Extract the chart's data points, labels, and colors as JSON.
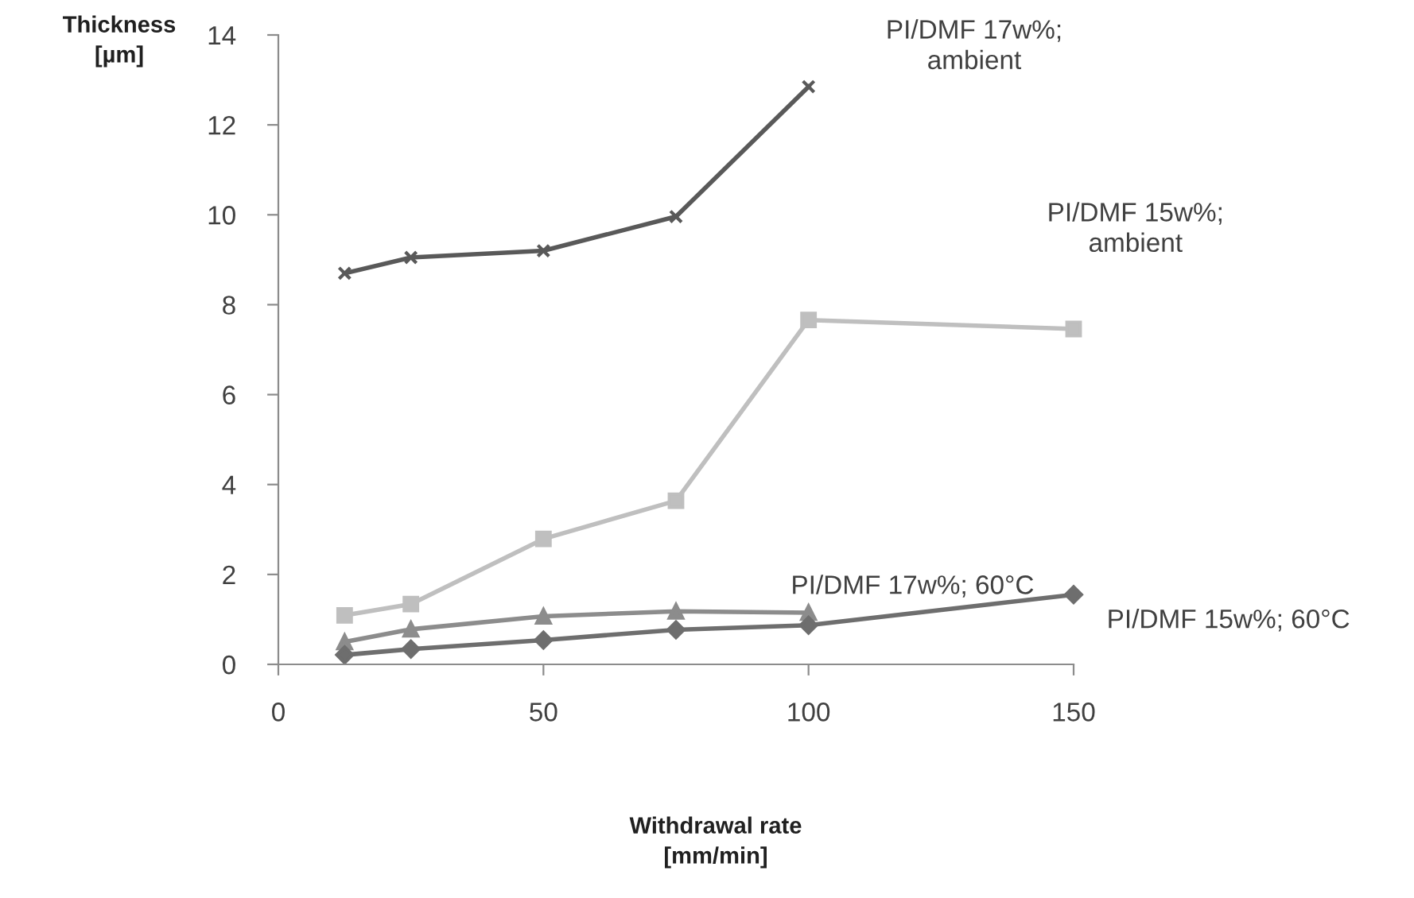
{
  "chart_data": {
    "type": "line",
    "xlabel": "Withdrawal rate\n[mm/min]",
    "ylabel": "Thickness\n[µm]",
    "xlim": [
      0,
      150
    ],
    "xticks": [
      0,
      50,
      100,
      150
    ],
    "ylim": [
      0,
      14
    ],
    "yticks": [
      0,
      2,
      4,
      6,
      8,
      10,
      12,
      14
    ],
    "grid": false,
    "legend": false,
    "series": [
      {
        "name": "PI/DMF 17w%;\nambient",
        "color": "#595959",
        "marker": "cross",
        "x": [
          12.5,
          25,
          50,
          75,
          100
        ],
        "values": [
          8.7,
          9.05,
          9.2,
          9.96,
          12.85
        ]
      },
      {
        "name": "PI/DMF 15w%;\nambient",
        "color": "#bfbfbf",
        "marker": "square",
        "x": [
          12.5,
          25,
          50,
          75,
          100,
          150
        ],
        "values": [
          1.09,
          1.34,
          2.79,
          3.64,
          7.66,
          7.46
        ]
      },
      {
        "name": "PI/DMF 17w%; 60°C",
        "color": "#8c8c8c",
        "marker": "triangle",
        "x": [
          12.5,
          25,
          50,
          75,
          100
        ],
        "values": [
          0.5,
          0.78,
          1.07,
          1.18,
          1.15
        ]
      },
      {
        "name": "PI/DMF 15w%; 60°C",
        "color": "#6e6e6e",
        "marker": "diamond",
        "x": [
          12.5,
          25,
          50,
          75,
          100,
          150
        ],
        "values": [
          0.21,
          0.34,
          0.54,
          0.77,
          0.87,
          1.55
        ]
      }
    ]
  }
}
